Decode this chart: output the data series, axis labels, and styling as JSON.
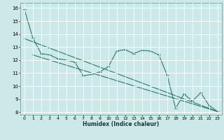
{
  "title": "",
  "xlabel": "Humidex (Indice chaleur)",
  "bg_color": "#cce8e8",
  "grid_color": "#ffffff",
  "line_color": "#2a7a6f",
  "xlim": [
    -0.5,
    23.5
  ],
  "ylim": [
    7.8,
    16.4
  ],
  "yticks": [
    8,
    9,
    10,
    11,
    12,
    13,
    14,
    15,
    16
  ],
  "xticks": [
    0,
    1,
    2,
    3,
    4,
    5,
    6,
    7,
    8,
    9,
    10,
    11,
    12,
    13,
    14,
    15,
    16,
    17,
    18,
    19,
    20,
    21,
    22,
    23
  ],
  "main_x": [
    0,
    1,
    2,
    3,
    4,
    5,
    6,
    7,
    8,
    9,
    10,
    11,
    12,
    13,
    14,
    15,
    16,
    17,
    18,
    19,
    20,
    21,
    22,
    23
  ],
  "main_y": [
    15.9,
    13.7,
    12.5,
    12.4,
    12.1,
    12.0,
    11.85,
    10.8,
    10.9,
    11.1,
    11.5,
    12.7,
    12.8,
    12.5,
    12.75,
    12.7,
    12.4,
    10.85,
    8.3,
    9.4,
    8.85,
    9.5,
    8.5,
    8.05
  ],
  "trend1_x": [
    0,
    23
  ],
  "trend1_y": [
    13.65,
    8.05
  ],
  "trend2_x": [
    1,
    23
  ],
  "trend2_y": [
    12.4,
    8.05
  ]
}
